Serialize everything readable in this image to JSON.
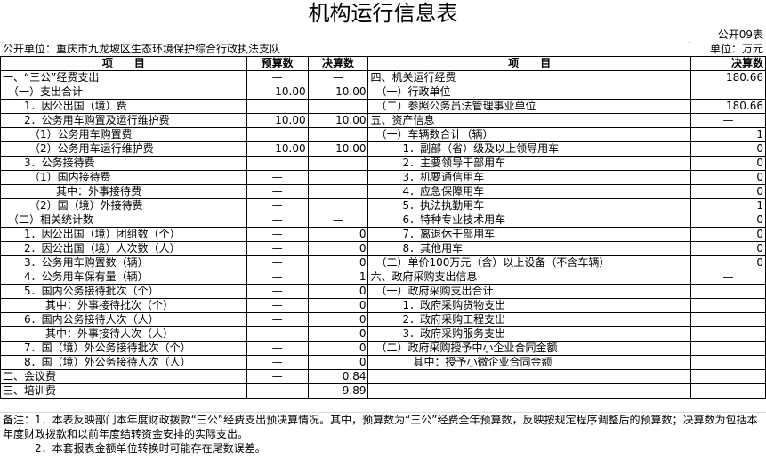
{
  "title": "机构运行信息表",
  "table_code": "公开09表",
  "unit_org": "公开单位：重庆市九龙坡区生态环境保护综合行政执法支队",
  "unit": "单位：万元",
  "headers": {
    "left_item": "项　　目",
    "budget": "预算数",
    "final": "决算数",
    "right_item": "项　　目",
    "right_final": "决算数"
  },
  "left_rows": [
    {
      "label": "一、“三公”经费支出",
      "budget": "—",
      "final": "—"
    },
    {
      "label": "　（一）支出合计",
      "budget": "10.00",
      "final": "10.00"
    },
    {
      "label": "　　1．因公出国（境）费",
      "budget": "",
      "final": ""
    },
    {
      "label": "　　2．公务用车购置及运行维护费",
      "budget": "10.00",
      "final": "10.00"
    },
    {
      "label": "　　　（1）公务用车购置费",
      "budget": "",
      "final": ""
    },
    {
      "label": "　　　（2）公务用车运行维护费",
      "budget": "10.00",
      "final": "10.00"
    },
    {
      "label": "　　3．公务接待费",
      "budget": "",
      "final": ""
    },
    {
      "label": "　　　（1）国内接待费",
      "budget": "—",
      "final": ""
    },
    {
      "label": "　　　　　其中：外事接待费",
      "budget": "—",
      "final": ""
    },
    {
      "label": "　　　（2）国（境）外接待费",
      "budget": "—",
      "final": ""
    },
    {
      "label": "　（二）相关统计数",
      "budget": "—",
      "final": "—"
    },
    {
      "label": "　　1．因公出国（境）团组数（个）",
      "budget": "—",
      "final": "0"
    },
    {
      "label": "　　2．因公出国（境）人次数（人）",
      "budget": "—",
      "final": "0"
    },
    {
      "label": "　　3．公务用车购置数（辆）",
      "budget": "—",
      "final": "0"
    },
    {
      "label": "　　4．公务用车保有量（辆）",
      "budget": "—",
      "final": "1"
    },
    {
      "label": "　　5．国内公务接待批次（个）",
      "budget": "—",
      "final": "0"
    },
    {
      "label": "　　　　其中：外事接待批次（个）",
      "budget": "—",
      "final": "0"
    },
    {
      "label": "　　6．国内公务接待人次（人）",
      "budget": "—",
      "final": "0"
    },
    {
      "label": "　　　　其中：外事接待人次（人）",
      "budget": "—",
      "final": "0"
    },
    {
      "label": "　　7．国（境）外公务接待批次（个）",
      "budget": "—",
      "final": "0"
    },
    {
      "label": "　　8．国（境）外公务接待人次（人）",
      "budget": "—",
      "final": "0"
    },
    {
      "label": "二、会议费",
      "budget": "—",
      "final": "0.84"
    },
    {
      "label": "三、培训费",
      "budget": "—",
      "final": "9.89"
    }
  ],
  "right_rows": [
    {
      "label": "四、机关运行经费",
      "final": "180.66"
    },
    {
      "label": "　（一）行政单位",
      "final": ""
    },
    {
      "label": "　（二）参照公务员法管理事业单位",
      "final": "180.66"
    },
    {
      "label": "五、资产信息",
      "final": "—"
    },
    {
      "label": "　（一）车辆数合计（辆）",
      "final": "1"
    },
    {
      "label": "　　　1．副部（省）级及以上领导用车",
      "final": "0"
    },
    {
      "label": "　　　2．主要领导干部用车",
      "final": "0"
    },
    {
      "label": "　　　3．机要通信用车",
      "final": "0"
    },
    {
      "label": "　　　4．应急保障用车",
      "final": "0"
    },
    {
      "label": "　　　5．执法执勤用车",
      "final": "1"
    },
    {
      "label": "　　　6．特种专业技术用车",
      "final": "0"
    },
    {
      "label": "　　　7．离退休干部用车",
      "final": "0"
    },
    {
      "label": "　　　8．其他用车",
      "final": "0"
    },
    {
      "label": "　（二）单价100万元（含）以上设备（不含车辆）",
      "final": "0"
    },
    {
      "label": "六、政府采购支出信息",
      "final": "—"
    },
    {
      "label": "　（一）政府采购支出合计",
      "final": ""
    },
    {
      "label": "　　　1．政府采购货物支出",
      "final": ""
    },
    {
      "label": "　　　2．政府采购工程支出",
      "final": ""
    },
    {
      "label": "　　　3．政府采购服务支出",
      "final": ""
    },
    {
      "label": "　（二）政府采购授予中小企业合同金额",
      "final": ""
    },
    {
      "label": "　　　　其中：授予小微企业合同金额",
      "final": ""
    },
    {
      "label": "",
      "final": ""
    },
    {
      "label": "",
      "final": ""
    }
  ],
  "notes": [
    "备注：1．本表反映部门本年度财政拨款“三公”经费支出预决算情况。其中，预算数为“三公”经费全年预算数，反映按规定程序调整后的预算数；决算数为包括本年度财政拨款和以前年度结转资金安排的实际支出。",
    "　　　2．本套报表金额单位转换时可能存在尾数误差。"
  ]
}
